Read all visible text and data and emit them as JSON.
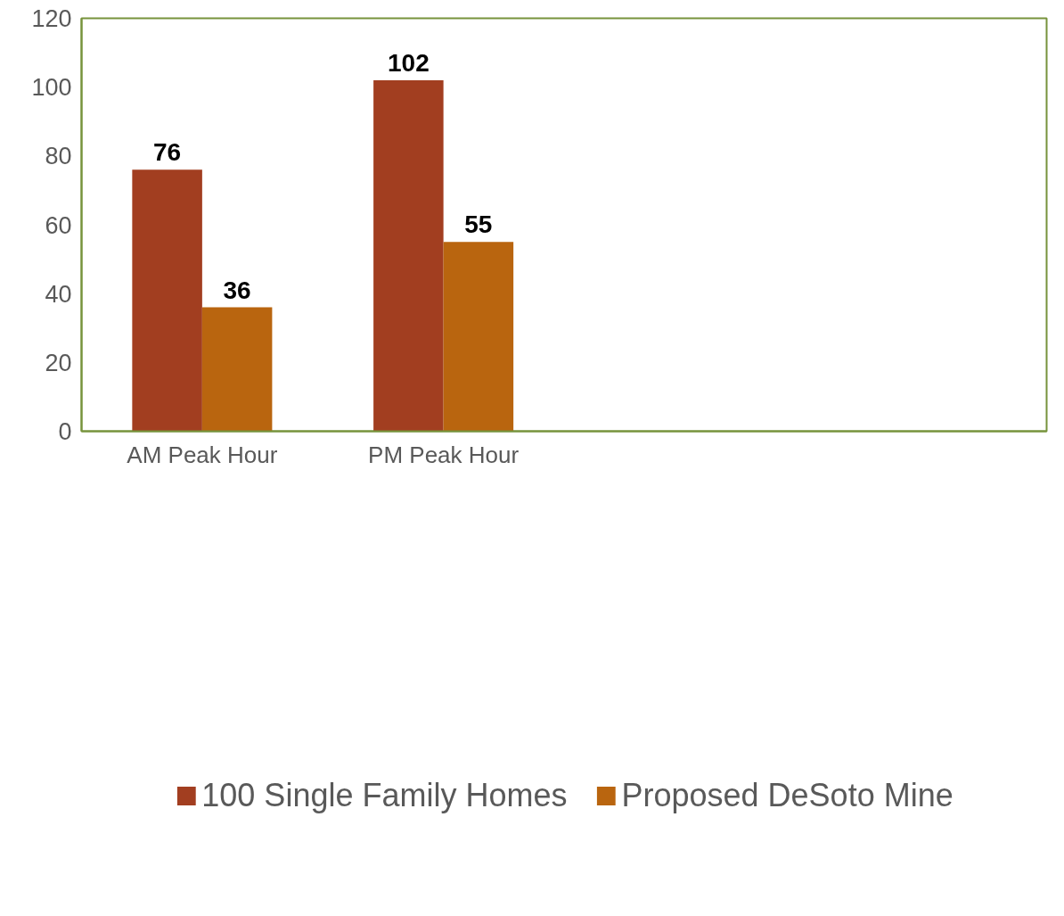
{
  "chart_data": {
    "type": "bar",
    "categories": [
      "AM Peak Hour",
      "PM Peak Hour",
      null,
      null
    ],
    "series": [
      {
        "name": "100 Single Family Homes",
        "color": "#a23e20",
        "values": [
          76,
          102,
          null,
          null
        ]
      },
      {
        "name": "Proposed DeSoto Mine",
        "color": "#b9650f",
        "values": [
          36,
          55,
          null,
          null
        ]
      }
    ],
    "ylim": [
      0,
      120
    ],
    "yticks": [
      0,
      20,
      40,
      60,
      80,
      100,
      120
    ],
    "grid": false,
    "legend": "bottom",
    "data_labels": true
  }
}
